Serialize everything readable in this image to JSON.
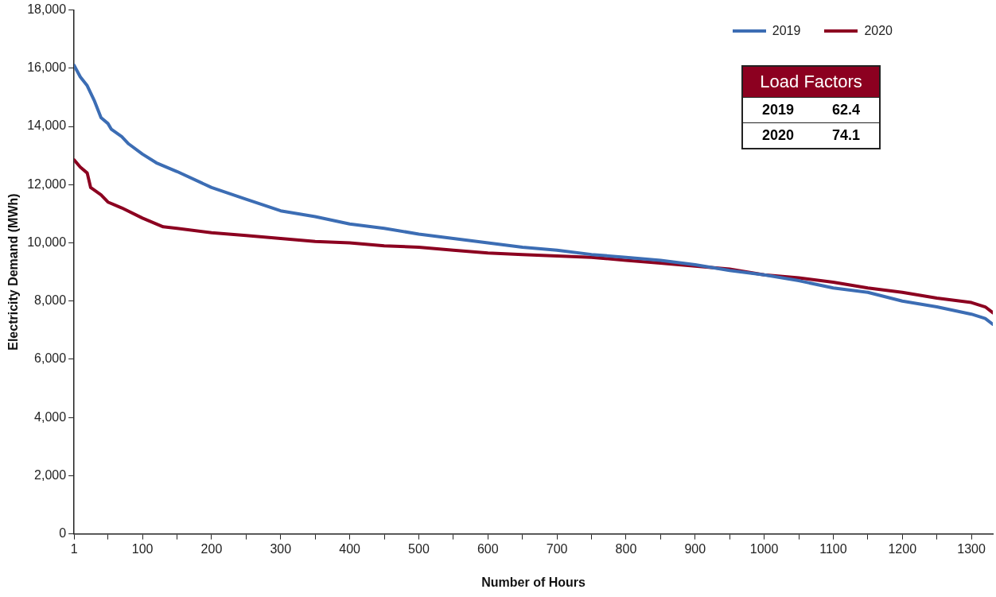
{
  "chart_data": {
    "type": "line",
    "xlabel": "Number of Hours",
    "ylabel": "Electricity Demand (MWh)",
    "xlim": [
      1,
      1331
    ],
    "ylim": [
      0,
      18000
    ],
    "xticks": [
      1,
      {
        "value": 50,
        "label": null
      },
      100,
      {
        "value": 150,
        "label": null
      },
      200,
      {
        "value": 250,
        "label": null
      },
      300,
      {
        "value": 350,
        "label": null
      },
      400,
      {
        "value": 450,
        "label": null
      },
      500,
      {
        "value": 550,
        "label": null
      },
      600,
      {
        "value": 650,
        "label": null
      },
      700,
      {
        "value": 750,
        "label": null
      },
      800,
      {
        "value": 850,
        "label": null
      },
      900,
      {
        "value": 950,
        "label": null
      },
      1000,
      {
        "value": 1050,
        "label": null
      },
      1100,
      {
        "value": 1150,
        "label": null
      },
      1200,
      {
        "value": 1250,
        "label": null
      },
      1300
    ],
    "yticks": [
      0,
      {
        "value": 2000,
        "label": "2,000"
      },
      {
        "value": 4000,
        "label": "4,000"
      },
      {
        "value": 6000,
        "label": "6,000"
      },
      {
        "value": 8000,
        "label": "8,000"
      },
      {
        "value": 10000,
        "label": "10,000"
      },
      {
        "value": 12000,
        "label": "12,000"
      },
      {
        "value": 14000,
        "label": "14,000"
      },
      {
        "value": 16000,
        "label": "16,000"
      },
      {
        "value": 18000,
        "label": "18,000"
      }
    ],
    "grid": false,
    "legend": "top right",
    "marker": "none",
    "line_style": "solid",
    "annotations": [
      "Load Factors",
      "2019",
      "62.4",
      "2020",
      "74.1"
    ],
    "series": [
      {
        "name": "2019",
        "color": "#3c6db4",
        "x": [
          1,
          10,
          20,
          30,
          40,
          50,
          55,
          70,
          80,
          100,
          120,
          150,
          200,
          250,
          300,
          350,
          400,
          450,
          500,
          550,
          600,
          650,
          700,
          750,
          800,
          850,
          900,
          950,
          1000,
          1050,
          1100,
          1150,
          1200,
          1250,
          1300,
          1320,
          1331
        ],
        "values": [
          16100,
          15700,
          15400,
          14900,
          14300,
          14100,
          13900,
          13650,
          13400,
          13050,
          12750,
          12450,
          11900,
          11500,
          11100,
          10900,
          10650,
          10500,
          10300,
          10150,
          10000,
          9850,
          9750,
          9600,
          9500,
          9400,
          9250,
          9050,
          8900,
          8700,
          8450,
          8300,
          8000,
          7800,
          7550,
          7400,
          7200
        ]
      },
      {
        "name": "2020",
        "color": "#8c0020",
        "x": [
          1,
          10,
          20,
          25,
          40,
          50,
          70,
          100,
          130,
          150,
          200,
          250,
          300,
          350,
          400,
          450,
          500,
          550,
          600,
          650,
          700,
          750,
          800,
          850,
          900,
          950,
          1000,
          1050,
          1100,
          1150,
          1200,
          1250,
          1300,
          1320,
          1331
        ],
        "values": [
          12850,
          12600,
          12400,
          11900,
          11650,
          11400,
          11200,
          10850,
          10550,
          10500,
          10350,
          10250,
          10150,
          10050,
          10000,
          9900,
          9850,
          9750,
          9650,
          9600,
          9550,
          9500,
          9400,
          9300,
          9200,
          9100,
          8900,
          8800,
          8650,
          8450,
          8300,
          8100,
          7950,
          7800,
          7600
        ]
      }
    ]
  }
}
